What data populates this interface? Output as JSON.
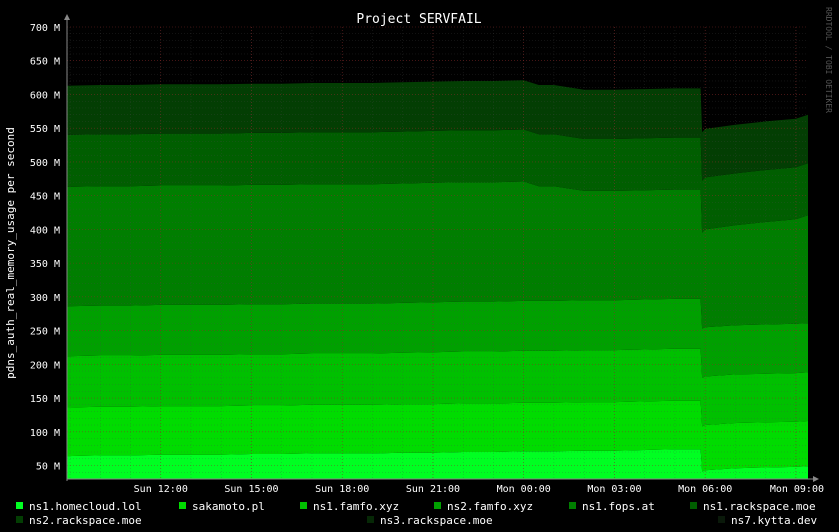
{
  "chart_data": {
    "type": "area",
    "title": "Project SERVFAIL",
    "ylabel": "pdns_auth_real_memory_usage per second",
    "watermark": "RRDTOOL / TOBI OETIKER",
    "ylim": [
      30,
      700
    ],
    "y_ticks": [
      50,
      100,
      150,
      200,
      250,
      300,
      350,
      400,
      450,
      500,
      550,
      600,
      650,
      700
    ],
    "y_tick_labels": [
      "50 M",
      "100 M",
      "150 M",
      "200 M",
      "250 M",
      "300 M",
      "350 M",
      "400 M",
      "450 M",
      "500 M",
      "550 M",
      "600 M",
      "650 M",
      "700 M"
    ],
    "x_tick_labels": [
      "Sun 12:00",
      "Sun 15:00",
      "Sun 18:00",
      "Sun 21:00",
      "Mon 00:00",
      "Mon 03:00",
      "Mon 06:00",
      "Mon 09:00"
    ],
    "x_tick_hours": [
      12,
      15,
      18,
      21,
      24,
      27,
      30,
      33
    ],
    "x_hours": [
      8.9,
      10,
      11,
      12,
      13,
      14,
      15,
      16,
      17,
      18,
      19,
      20,
      21,
      22,
      23,
      24,
      24.5,
      25,
      26,
      27,
      28,
      29,
      29.85,
      29.9,
      30,
      31,
      32,
      33,
      33.4
    ],
    "series": [
      {
        "name": "ns1.homecloud.lol",
        "color": "#00ff22",
        "values": [
          64,
          65,
          65,
          66,
          66,
          66,
          67,
          67,
          68,
          68,
          68,
          69,
          69,
          70,
          70,
          71,
          71,
          71,
          72,
          72,
          73,
          74,
          74,
          41,
          43,
          46,
          47,
          48,
          49
        ]
      },
      {
        "name": "sakamoto.pl",
        "color": "#00dc00",
        "values": [
          72,
          72,
          72,
          72,
          72,
          72,
          72,
          72,
          72,
          72,
          72,
          72,
          72,
          72,
          72,
          72,
          72,
          72,
          72,
          72,
          72,
          72,
          72,
          67,
          67,
          67,
          67,
          67,
          67
        ]
      },
      {
        "name": "ns1.famfo.xyz",
        "color": "#00c000",
        "values": [
          76,
          76,
          76,
          76,
          76,
          76,
          76,
          76,
          76,
          76,
          76,
          76,
          77,
          77,
          77,
          77,
          77,
          77,
          77,
          77,
          77,
          77,
          77,
          72,
          72,
          72,
          72,
          72,
          72
        ]
      },
      {
        "name": "ns2.famfo.xyz",
        "color": "#00a000",
        "values": [
          74,
          74,
          74,
          74,
          74,
          74,
          74,
          74,
          74,
          74,
          74,
          74,
          74,
          74,
          74,
          74,
          74,
          74,
          74,
          74,
          74,
          74,
          74,
          73,
          73,
          73,
          73,
          73,
          73
        ]
      },
      {
        "name": "ns1.fops.at",
        "color": "#007e00",
        "values": [
          177,
          177,
          177,
          177,
          177,
          177,
          177,
          177,
          177,
          177,
          177,
          177,
          177,
          177,
          177,
          177,
          170,
          170,
          162,
          162,
          162,
          162,
          162,
          142,
          145,
          148,
          152,
          155,
          160
        ]
      },
      {
        "name": "ns1.rackspace.moe",
        "color": "#005e00",
        "values": [
          77,
          77,
          77,
          77,
          77,
          77,
          77,
          77,
          77,
          77,
          77,
          77,
          77,
          77,
          77,
          77,
          77,
          77,
          77,
          77,
          77,
          77,
          77,
          77,
          77,
          77,
          77,
          77,
          77
        ]
      },
      {
        "name": "ns2.rackspace.moe",
        "color": "#033e03",
        "values": [
          73,
          73,
          73,
          73,
          73,
          73,
          73,
          73,
          73,
          73,
          73,
          73,
          73,
          73,
          73,
          73,
          73,
          73,
          73,
          73,
          73,
          73,
          73,
          72,
          72,
          72,
          72,
          72,
          72
        ]
      },
      {
        "name": "ns3.rackspace.moe",
        "color": "#062806",
        "values": [
          0,
          0,
          0,
          0,
          0,
          0,
          0,
          0,
          0,
          0,
          0,
          0,
          0,
          0,
          0,
          0,
          0,
          0,
          0,
          0,
          0,
          0,
          0,
          0,
          0,
          0,
          0,
          0,
          0
        ]
      },
      {
        "name": "ns7.kytta.dev",
        "color": "#0a190a",
        "values": [
          0,
          0,
          0,
          0,
          0,
          0,
          0,
          0,
          0,
          0,
          0,
          0,
          0,
          0,
          0,
          0,
          0,
          0,
          0,
          0,
          0,
          0,
          0,
          0,
          0,
          0,
          0,
          0,
          0
        ]
      }
    ]
  }
}
